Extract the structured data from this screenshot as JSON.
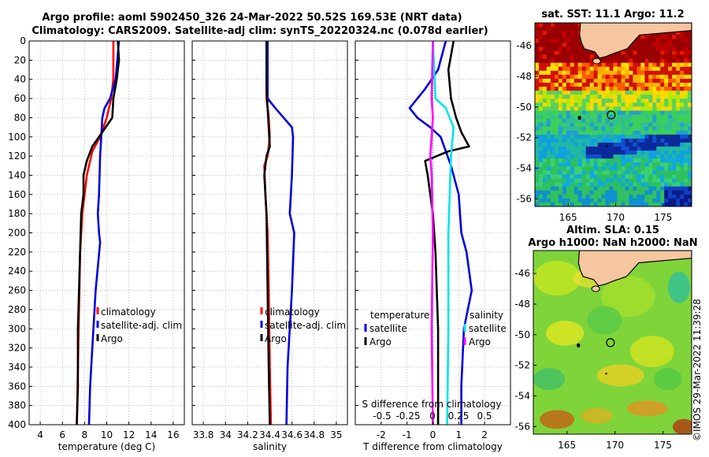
{
  "header": {
    "line1": "Argo profile: aoml 5902450_326 24-Mar-2022 50.52S 169.53E (NRT data)",
    "line2": "Climatology: CARS2009. Satellite-adj clim: synTS_20220324.nc (0.078d earlier)"
  },
  "watermark": "©IMOS 29-Mar-2022 11:39:28",
  "colors": {
    "red": "#ff0000",
    "blue": "#0000dd",
    "black": "#000000",
    "cyan": "#00e5e5",
    "magenta": "#ff00ff",
    "grid": "#b0b0b0",
    "land": "#f6c6a0"
  },
  "chart_data": [
    {
      "type": "line",
      "name": "temperature-panel",
      "xlabel": "temperature (deg C)",
      "ylabel": "",
      "xlim": [
        3,
        17
      ],
      "ylim": [
        400,
        0
      ],
      "xticks": [
        "4",
        "6",
        "8",
        "10",
        "12",
        "14",
        "16"
      ],
      "xtick_values": [
        4,
        6,
        8,
        10,
        12,
        14,
        16
      ],
      "yticks": [
        "0",
        "20",
        "40",
        "60",
        "80",
        "100",
        "120",
        "140",
        "160",
        "180",
        "200",
        "220",
        "240",
        "260",
        "280",
        "300",
        "320",
        "340",
        "360",
        "380",
        "400"
      ],
      "ytick_values": [
        0,
        20,
        40,
        60,
        80,
        100,
        120,
        140,
        160,
        180,
        200,
        220,
        240,
        260,
        280,
        300,
        320,
        340,
        360,
        380,
        400
      ],
      "legend": {
        "position": "bottom-right",
        "entries": [
          "climatology",
          "satellite-adj. clim",
          "Argo"
        ]
      },
      "series": [
        {
          "name": "climatology",
          "color": "#ff0000",
          "x": [
            10.6,
            10.6,
            10.4,
            10.0,
            9.4,
            8.7,
            8.2,
            7.8,
            7.6,
            7.5,
            7.4,
            7.3
          ],
          "y": [
            0,
            40,
            60,
            80,
            100,
            115,
            140,
            180,
            220,
            280,
            340,
            400
          ]
        },
        {
          "name": "satellite-adj. clim",
          "color": "#0000dd",
          "x": [
            11.1,
            10.8,
            10.3,
            9.8,
            9.6,
            9.4,
            9.3,
            9.2,
            9.3,
            9.4,
            9.0,
            8.7,
            8.5,
            8.4
          ],
          "y": [
            0,
            40,
            60,
            70,
            80,
            120,
            160,
            180,
            200,
            210,
            260,
            320,
            360,
            400
          ]
        },
        {
          "name": "Argo",
          "color": "#000000",
          "x": [
            11.0,
            11.1,
            10.9,
            10.6,
            10.5,
            9.6,
            8.7,
            8.2,
            7.9,
            7.9,
            7.7,
            7.6,
            7.5,
            7.4,
            7.4,
            7.3
          ],
          "y": [
            0,
            20,
            40,
            60,
            80,
            95,
            110,
            125,
            140,
            160,
            180,
            220,
            260,
            300,
            360,
            400
          ]
        }
      ]
    },
    {
      "type": "line",
      "name": "salinity-panel",
      "xlabel": "salinity",
      "ylabel": "",
      "xlim": [
        33.7,
        35.1
      ],
      "ylim": [
        400,
        0
      ],
      "xticks": [
        "33.8",
        "34",
        "34.2",
        "34.4",
        "34.6",
        "34.8",
        "35"
      ],
      "xtick_values": [
        33.8,
        34.0,
        34.2,
        34.4,
        34.6,
        34.8,
        35.0
      ],
      "legend": {
        "position": "bottom-right",
        "entries": [
          "climatology",
          "satellite-adj. clim",
          "Argo"
        ]
      },
      "series": [
        {
          "name": "climatology",
          "color": "#ff0000",
          "x": [
            34.37,
            34.37,
            34.39,
            34.4,
            34.38,
            34.35,
            34.36,
            34.38,
            34.39,
            34.4,
            34.41
          ],
          "y": [
            0,
            60,
            80,
            100,
            120,
            130,
            160,
            200,
            260,
            340,
            400
          ]
        },
        {
          "name": "satellite-adj. clim",
          "color": "#0000dd",
          "x": [
            34.38,
            34.38,
            34.45,
            34.6,
            34.61,
            34.6,
            34.58,
            34.62,
            34.6,
            34.56,
            34.55
          ],
          "y": [
            0,
            60,
            70,
            90,
            100,
            140,
            180,
            200,
            260,
            340,
            400
          ]
        },
        {
          "name": "Argo",
          "color": "#000000",
          "x": [
            34.37,
            34.37,
            34.38,
            34.39,
            34.4,
            34.37,
            34.35,
            34.37,
            34.38,
            34.39,
            34.4
          ],
          "y": [
            0,
            50,
            70,
            90,
            110,
            120,
            140,
            180,
            260,
            340,
            400
          ]
        }
      ]
    },
    {
      "type": "line",
      "name": "difference-panel",
      "xlabel": "T difference from climatology",
      "top_xlabel": "S difference from climatology",
      "xlim": [
        -3,
        3
      ],
      "ylim": [
        400,
        0
      ],
      "xticks": [
        "-2",
        "-1",
        "0",
        "1",
        "2"
      ],
      "xtick_values": [
        -2,
        -1,
        0,
        1,
        2
      ],
      "top_xticks": [
        "-0.5",
        "-0.25",
        "0",
        "0.25",
        "0.5"
      ],
      "top_xtick_values": [
        -2,
        -1,
        0,
        1,
        2
      ],
      "legend_left": {
        "title": "temperature",
        "entries": [
          "satellite",
          "Argo"
        ]
      },
      "legend_right": {
        "title": "salinity",
        "entries": [
          "satellite",
          "Argo"
        ]
      },
      "series": [
        {
          "name": "temperature satellite",
          "color": "#0000dd",
          "x": [
            0.5,
            0.2,
            -0.3,
            -0.9,
            -0.6,
            -0.1,
            0.3,
            0.7,
            1.0,
            1.1,
            1.3,
            1.5,
            1.2,
            1.1,
            1.1
          ],
          "y": [
            0,
            30,
            50,
            70,
            80,
            90,
            100,
            130,
            160,
            200,
            220,
            260,
            300,
            360,
            400
          ]
        },
        {
          "name": "temperature Argo",
          "color": "#000000",
          "x": [
            0.8,
            0.6,
            0.7,
            0.9,
            1.1,
            1.4,
            0.6,
            -0.3,
            -0.2,
            0.0,
            0.1,
            0.2,
            0.2,
            0.2
          ],
          "y": [
            0,
            30,
            60,
            80,
            95,
            110,
            115,
            125,
            140,
            180,
            220,
            300,
            360,
            400
          ]
        },
        {
          "name": "salinity satellite",
          "color": "#00e5e5",
          "x": [
            0.0,
            0.1,
            0.5,
            0.8,
            0.7,
            0.6,
            0.6,
            0.55
          ],
          "y": [
            0,
            60,
            70,
            90,
            120,
            200,
            300,
            400
          ]
        },
        {
          "name": "salinity Argo",
          "color": "#ff00ff",
          "x": [
            0.0,
            -0.05,
            0.0,
            -0.1,
            -0.05,
            0.0,
            -0.05,
            0.0
          ],
          "y": [
            0,
            60,
            80,
            120,
            140,
            200,
            300,
            400
          ]
        }
      ]
    },
    {
      "type": "heatmap",
      "name": "sst-map",
      "title": "sat. SST: 11.1 Argo: 11.2",
      "xlim": [
        161.5,
        178
      ],
      "ylim": [
        -56.5,
        -44.5
      ],
      "xticks": [
        "165",
        "170",
        "175"
      ],
      "xtick_values": [
        165,
        170,
        175
      ],
      "yticks": [
        "-46",
        "-48",
        "-50",
        "-52",
        "-54",
        "-56"
      ],
      "ytick_values": [
        -46,
        -48,
        -50,
        -52,
        -54,
        -56
      ],
      "profile_marker": {
        "lon": 169.53,
        "lat": -50.52
      }
    },
    {
      "type": "heatmap",
      "name": "sla-map",
      "title": "Altim. SLA: 0.15",
      "subtitle": "Argo h1000: NaN h2000: NaN",
      "xlim": [
        161.5,
        178
      ],
      "ylim": [
        -56.5,
        -44.5
      ],
      "xticks": [
        "165",
        "170",
        "175"
      ],
      "xtick_values": [
        165,
        170,
        175
      ],
      "yticks": [
        "-46",
        "-48",
        "-50",
        "-52",
        "-54",
        "-56"
      ],
      "ytick_values": [
        -46,
        -48,
        -50,
        -52,
        -54,
        -56
      ],
      "profile_marker": {
        "lon": 169.53,
        "lat": -50.52
      }
    }
  ]
}
